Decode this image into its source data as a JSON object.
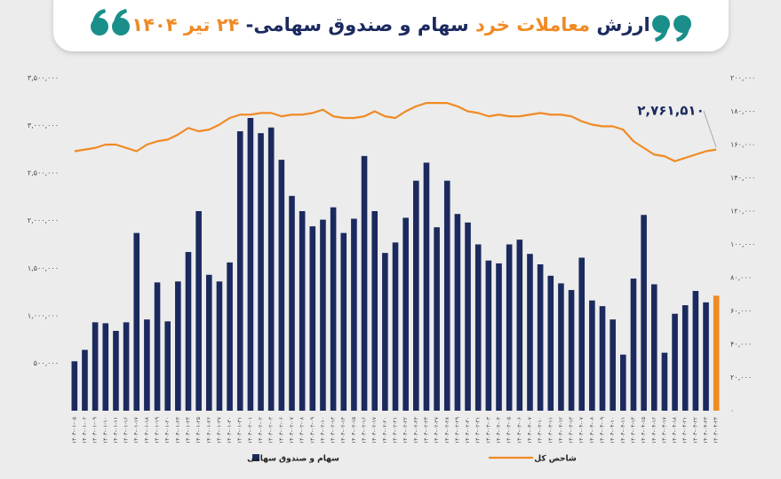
{
  "chart_data": {
    "type": "bar-line",
    "title": [
      {
        "text": "ارزش ",
        "color": "#1b2a5e"
      },
      {
        "text": "معاملات خرد",
        "color": "#f08a24"
      },
      {
        "text": " سهام و صندوق سهامی- ",
        "color": "#1b2a5e"
      },
      {
        "text": "۲۴",
        "color": "#f08a24"
      },
      {
        "text": " تیر ۱۴۰۴",
        "color": "#f08a24"
      }
    ],
    "annotation": "۲,۷۶۱,۵۱۰",
    "categories": [
      "۱۴۰۴-۰۱-۰۵",
      "۱۴۰۴-۰۱-۰۶",
      "۱۴۰۴-۰۱-۰۹",
      "۱۴۰۴-۰۱-۱۰",
      "۱۴۰۴-۰۱-۱۱",
      "۱۴۰۴-۰۱-۱۶",
      "۱۴۰۴-۰۱-۱۷",
      "۱۴۰۴-۰۱-۱۸",
      "۱۴۰۴-۰۱-۱۹",
      "۱۴۰۴-۰۱-۲۰",
      "۱۴۰۴-۰۱-۲۳",
      "۱۴۰۴-۰۱-۲۴",
      "۱۴۰۴-۰۱-۲۵",
      "۱۴۰۴-۰۱-۲۶",
      "۱۴۰۴-۰۱-۲۷",
      "۱۴۰۴-۰۱-۳۰",
      "۱۴۰۴-۰۱-۳۱",
      "۱۴۰۴-۰۲-۰۱",
      "۱۴۰۴-۰۲-۰۲",
      "۱۴۰۴-۰۲-۰۳",
      "۱۴۰۴-۰۲-۰۶",
      "۱۴۰۴-۰۲-۰۷",
      "۱۴۰۴-۰۲-۰۸",
      "۱۴۰۴-۰۲-۰۹",
      "۱۴۰۴-۰۲-۱۰",
      "۱۴۰۴-۰۲-۱۳",
      "۱۴۰۴-۰۲-۱۴",
      "۱۴۰۴-۰۲-۱۵",
      "۱۴۰۴-۰۲-۱۶",
      "۱۴۰۴-۰۲-۱۷",
      "۱۴۰۴-۰۲-۲۰",
      "۱۴۰۴-۰۲-۲۱",
      "۱۴۰۴-۰۲-۲۲",
      "۱۴۰۴-۰۲-۲۳",
      "۱۴۰۴-۰۲-۲۴",
      "۱۴۰۴-۰۲-۲۷",
      "۱۴۰۴-۰۲-۲۸",
      "۱۴۰۴-۰۲-۲۹",
      "۱۴۰۴-۰۲-۳۰",
      "۱۴۰۴-۰۲-۳۱",
      "۱۴۰۴-۰۳-۰۳",
      "۱۴۰۴-۰۳-۰۴",
      "۱۴۰۴-۰۳-۰۵",
      "۱۴۰۴-۰۳-۰۶",
      "۱۴۰۴-۰۳-۰۷",
      "۱۴۰۴-۰۳-۱۰",
      "۱۴۰۴-۰۳-۱۱",
      "۱۴۰۴-۰۳-۱۲",
      "۱۴۰۴-۰۳-۱۳",
      "۱۴۰۴-۰۴-۰۷",
      "۱۴۰۴-۰۴-۰۸",
      "۱۴۰۴-۰۴-۰۹",
      "۱۴۰۴-۰۴-۱۰",
      "۱۴۰۴-۰۴-۱۱",
      "۱۴۰۴-۰۴-۱۴",
      "۱۴۰۴-۰۴-۱۵",
      "۱۴۰۴-۰۴-۱۶",
      "۱۴۰۴-۰۴-۱۷",
      "۱۴۰۴-۰۴-۱۸",
      "۱۴۰۴-۰۴-۲۱",
      "۱۴۰۴-۰۴-۲۲",
      "۱۴۰۴-۰۴-۲۳",
      "۱۴۰۴-۰۴-۲۴"
    ],
    "series": [
      {
        "name": "سهام و صندوق سهامی",
        "type": "bar",
        "color": "#1b2a5e",
        "colors": [
          "#1b2a5e",
          "#1b2a5e",
          "#1b2a5e",
          "#1b2a5e",
          "#1b2a5e",
          "#1b2a5e",
          "#1b2a5e",
          "#1b2a5e",
          "#1b2a5e",
          "#1b2a5e",
          "#1b2a5e",
          "#1b2a5e",
          "#1b2a5e",
          "#1b2a5e",
          "#1b2a5e",
          "#1b2a5e",
          "#1b2a5e",
          "#1b2a5e",
          "#1b2a5e",
          "#1b2a5e",
          "#1b2a5e",
          "#1b2a5e",
          "#1b2a5e",
          "#1b2a5e",
          "#1b2a5e",
          "#1b2a5e",
          "#1b2a5e",
          "#1b2a5e",
          "#1b2a5e",
          "#1b2a5e",
          "#1b2a5e",
          "#1b2a5e",
          "#1b2a5e",
          "#1b2a5e",
          "#1b2a5e",
          "#1b2a5e",
          "#1b2a5e",
          "#1b2a5e",
          "#1b2a5e",
          "#1b2a5e",
          "#1b2a5e",
          "#1b2a5e",
          "#1b2a5e",
          "#1b2a5e",
          "#1b2a5e",
          "#1b2a5e",
          "#1b2a5e",
          "#1b2a5e",
          "#1b2a5e",
          "#1b2a5e",
          "#1b2a5e",
          "#1b2a5e",
          "#1b2a5e",
          "#1b2a5e",
          "#1b2a5e",
          "#1b2a5e",
          "#1b2a5e",
          "#1b2a5e",
          "#1b2a5e",
          "#1b2a5e",
          "#1b2a5e",
          "#1b2a5e",
          "#f08a24"
        ],
        "values": [
          520000,
          640000,
          930000,
          920000,
          840000,
          930000,
          1870000,
          960000,
          1350000,
          940000,
          1360000,
          1670000,
          2100000,
          1430000,
          1360000,
          1560000,
          2940000,
          3080000,
          2920000,
          2980000,
          2640000,
          2260000,
          2100000,
          1940000,
          2010000,
          2140000,
          1870000,
          2020000,
          2680000,
          2100000,
          1660000,
          1770000,
          2030000,
          2420000,
          2610000,
          1930000,
          2420000,
          2070000,
          1980000,
          1750000,
          1580000,
          1550000,
          1750000,
          1800000,
          1650000,
          1540000,
          1420000,
          1340000,
          1270000,
          1610000,
          1160000,
          1100000,
          960000,
          590000,
          1390000,
          2060000,
          1330000,
          610000,
          1020000,
          1110000,
          1260000,
          1140000,
          1210000
        ]
      },
      {
        "name": "شاخص کل",
        "type": "line",
        "axis": "y2",
        "color": "#f08a24",
        "values": [
          156000,
          157000,
          158000,
          160000,
          160000,
          158000,
          156000,
          160000,
          162000,
          163000,
          166000,
          170000,
          168000,
          169000,
          172000,
          176000,
          178000,
          178000,
          179000,
          179000,
          177000,
          178000,
          178000,
          179000,
          181000,
          177000,
          176000,
          176000,
          177000,
          180000,
          177000,
          176000,
          180000,
          183000,
          185000,
          185000,
          185000,
          183000,
          180000,
          179000,
          177000,
          178000,
          177000,
          177000,
          178000,
          179000,
          178000,
          178000,
          177000,
          174000,
          172000,
          171000,
          171000,
          169000,
          162000,
          158000,
          154000,
          153000,
          150000,
          152000,
          154000,
          156000,
          157000
        ]
      }
    ],
    "ylim": [
      0,
      3500000
    ],
    "yticks": [
      {
        "value": 500000,
        "label": "۵۰۰,۰۰۰"
      },
      {
        "value": 1000000,
        "label": "۱,۰۰۰,۰۰۰"
      },
      {
        "value": 1500000,
        "label": "۱,۵۰۰,۰۰۰"
      },
      {
        "value": 2000000,
        "label": "۲,۰۰۰,۰۰۰"
      },
      {
        "value": 2500000,
        "label": "۲,۵۰۰,۰۰۰"
      },
      {
        "value": 3000000,
        "label": "۳,۰۰۰,۰۰۰"
      },
      {
        "value": 3500000,
        "label": "۳,۵۰۰,۰۰۰"
      }
    ],
    "y2lim": [
      0,
      200000
    ],
    "y2ticks": [
      {
        "value": 0,
        "label": "۰"
      },
      {
        "value": 20000,
        "label": "۲۰,۰۰۰"
      },
      {
        "value": 40000,
        "label": "۴۰,۰۰۰"
      },
      {
        "value": 60000,
        "label": "۶۰,۰۰۰"
      },
      {
        "value": 80000,
        "label": "۸۰,۰۰۰"
      },
      {
        "value": 100000,
        "label": "۱۰۰,۰۰۰"
      },
      {
        "value": 120000,
        "label": "۱۲۰,۰۰۰"
      },
      {
        "value": 140000,
        "label": "۱۴۰,۰۰۰"
      },
      {
        "value": 160000,
        "label": "۱۶۰,۰۰۰"
      },
      {
        "value": 180000,
        "label": "۱۸۰,۰۰۰"
      },
      {
        "value": 200000,
        "label": "۲۰۰,۰۰۰"
      }
    ],
    "legend": "bottom",
    "grid": false
  }
}
